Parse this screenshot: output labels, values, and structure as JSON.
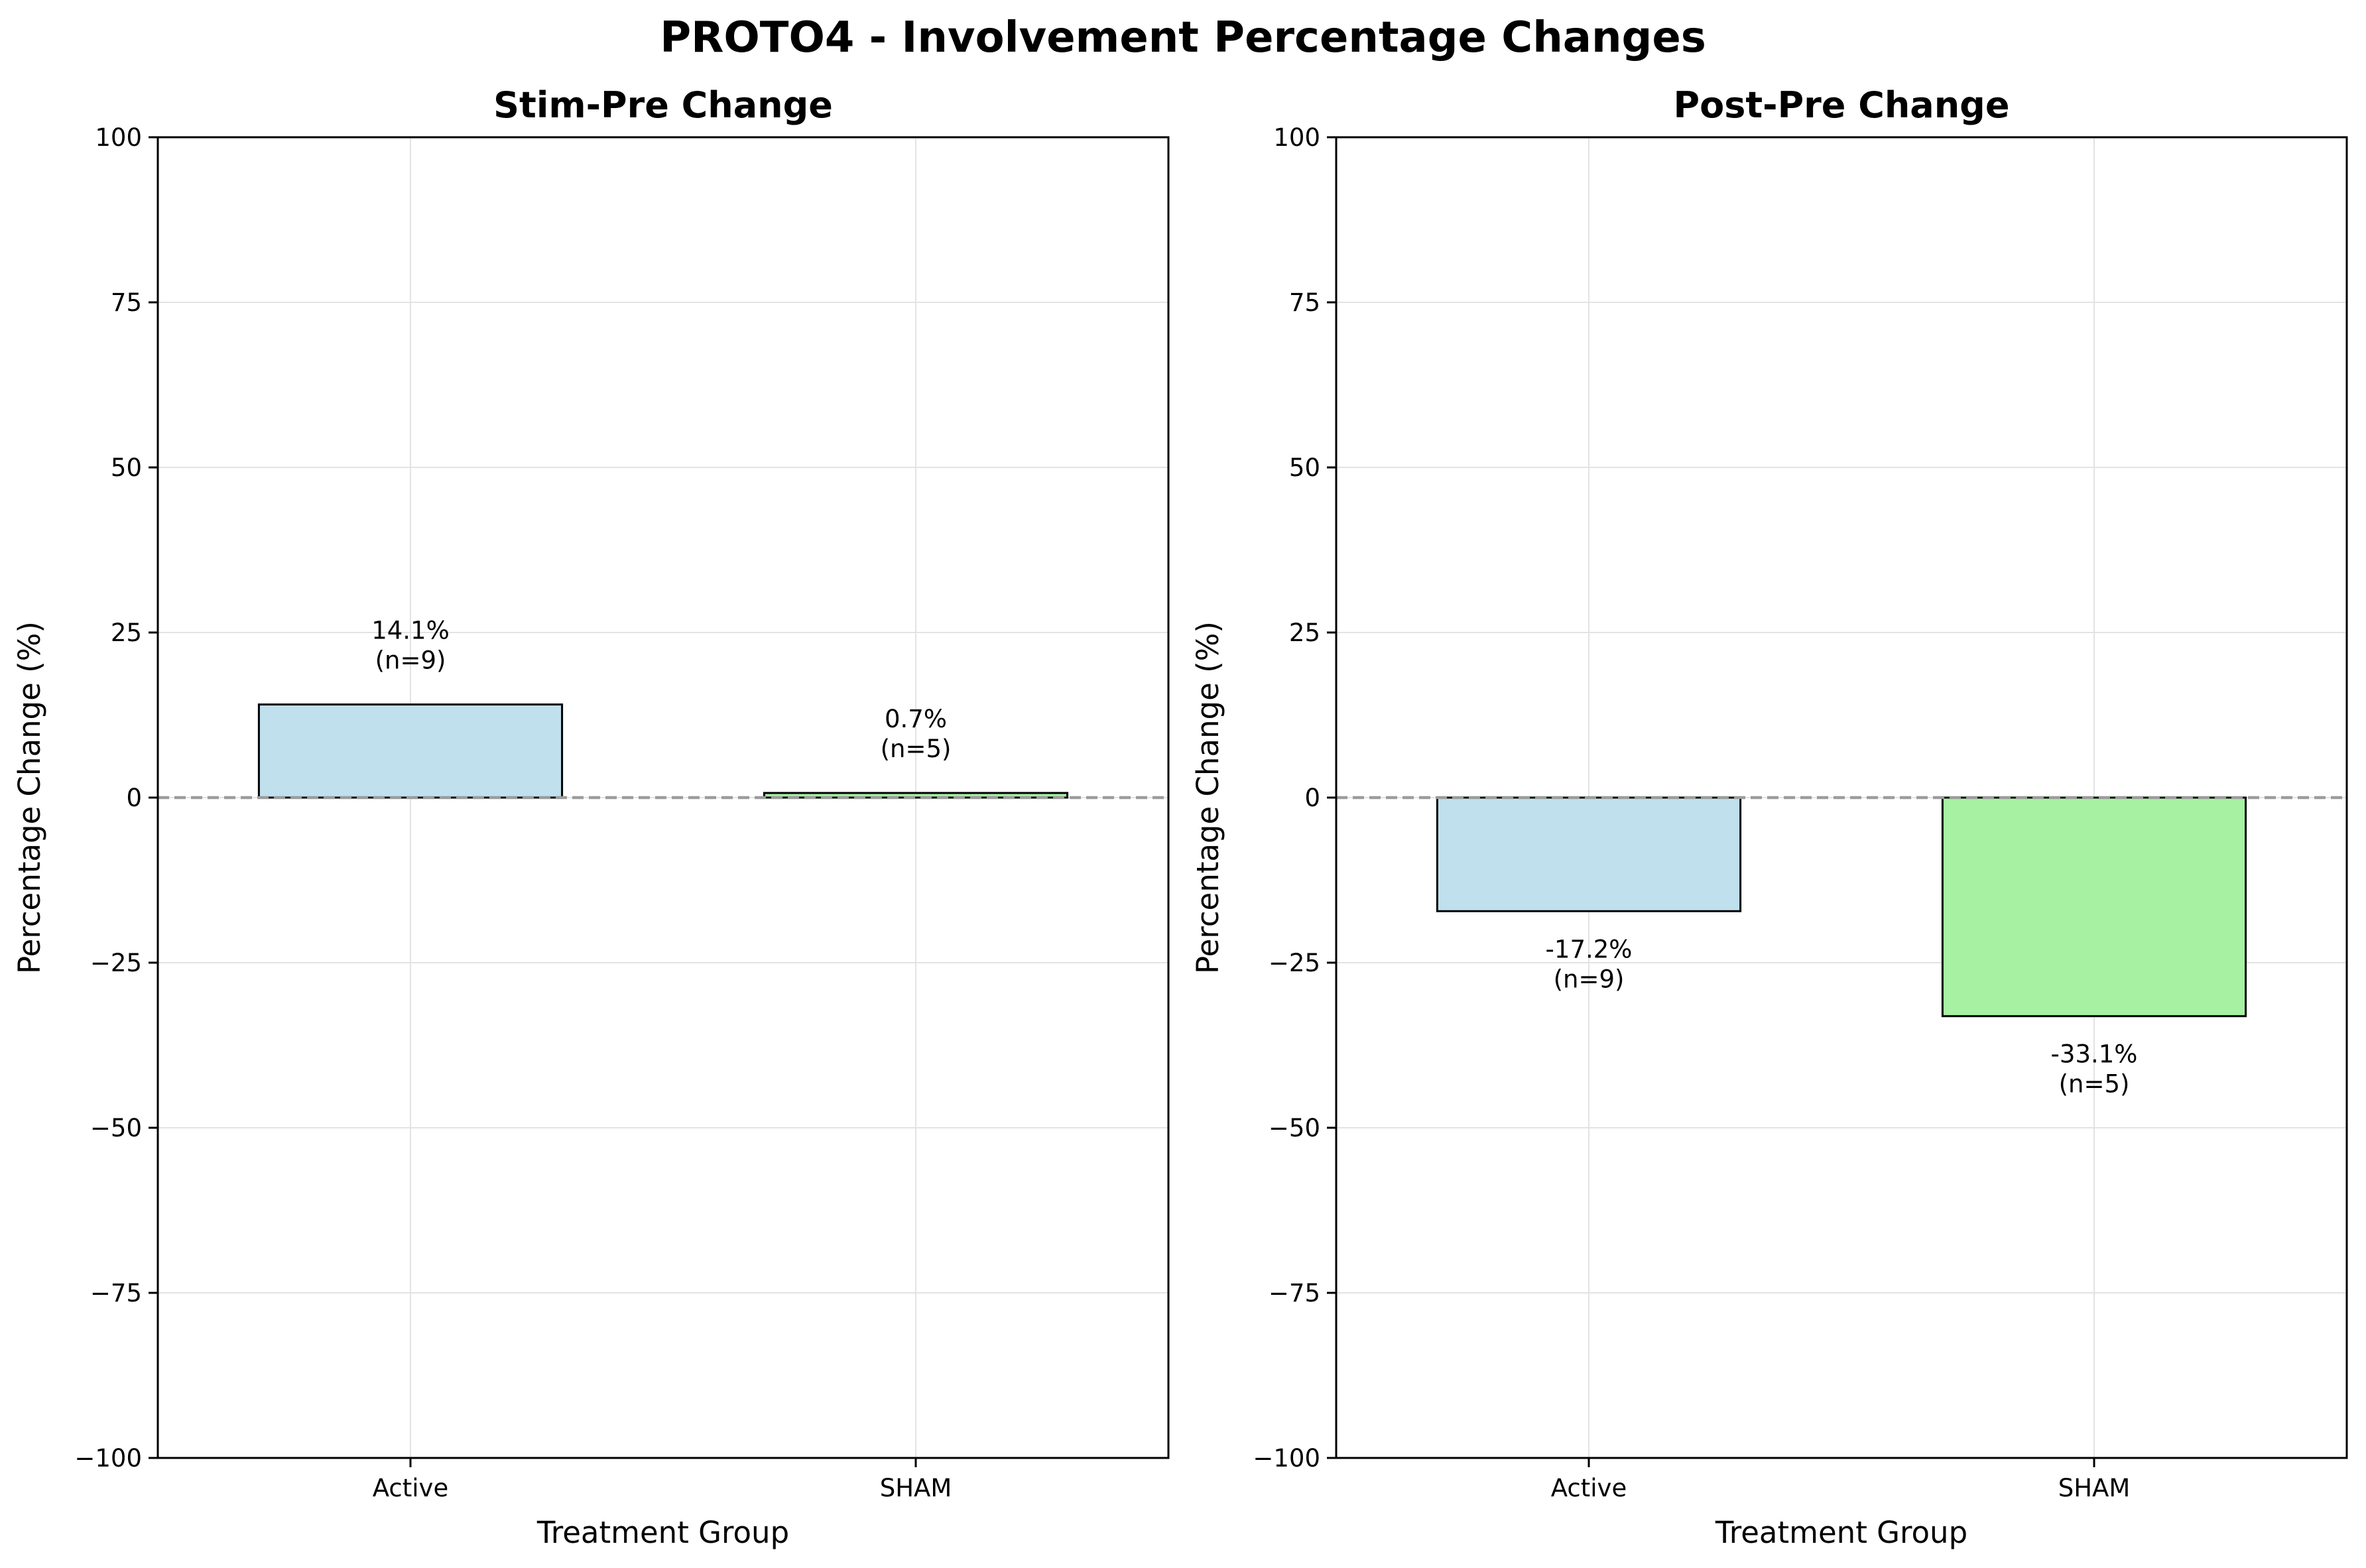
{
  "figure": {
    "title": "PROTO4 - Involvement Percentage Changes"
  },
  "colors": {
    "Active": "#bfe0ec",
    "SHAM": "#a6f1a2",
    "edge": "#000000",
    "grid": "#e3e3e3",
    "zero_line": "#9c9c9c"
  },
  "chart_data": [
    {
      "type": "bar",
      "title": "Stim-Pre Change",
      "xlabel": "Treatment Group",
      "ylabel": "Percentage Change (%)",
      "categories": [
        "Active",
        "SHAM"
      ],
      "values": [
        14.1,
        0.7
      ],
      "labels": [
        [
          "14.1%",
          "(n=9)"
        ],
        [
          "0.7%",
          "(n=5)"
        ]
      ],
      "ylim": [
        -100,
        100
      ],
      "yticks": [
        -100,
        -75,
        -50,
        -25,
        0,
        25,
        50,
        75,
        100
      ],
      "ytick_labels": [
        "−100",
        "−75",
        "−50",
        "−25",
        "0",
        "25",
        "50",
        "75",
        "100"
      ],
      "grid": true,
      "zero_line": "dashed"
    },
    {
      "type": "bar",
      "title": "Post-Pre Change",
      "xlabel": "Treatment Group",
      "ylabel": "Percentage Change (%)",
      "categories": [
        "Active",
        "SHAM"
      ],
      "values": [
        -17.2,
        -33.1
      ],
      "labels": [
        [
          "-17.2%",
          "(n=9)"
        ],
        [
          "-33.1%",
          "(n=5)"
        ]
      ],
      "ylim": [
        -100,
        100
      ],
      "yticks": [
        -100,
        -75,
        -50,
        -25,
        0,
        25,
        50,
        75,
        100
      ],
      "ytick_labels": [
        "−100",
        "−75",
        "−50",
        "−25",
        "0",
        "25",
        "50",
        "75",
        "100"
      ],
      "grid": true,
      "zero_line": "dashed"
    }
  ]
}
